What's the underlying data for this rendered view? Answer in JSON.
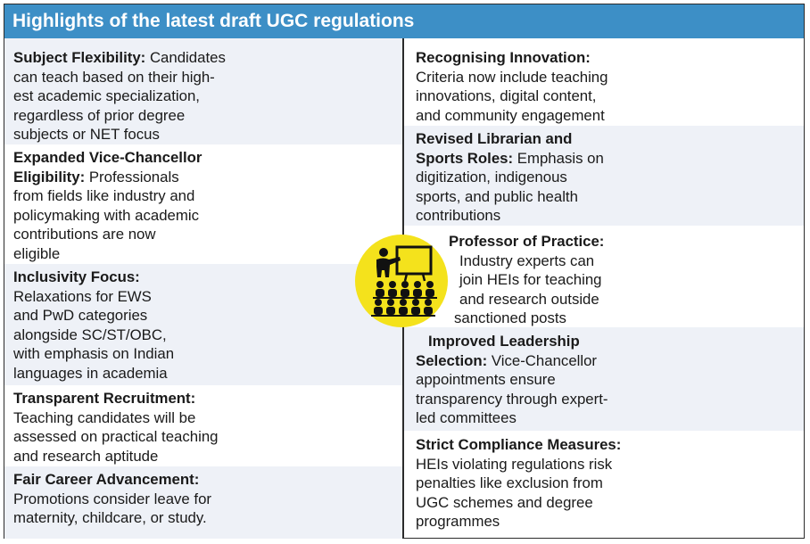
{
  "header": {
    "title": "Highlights of the latest draft UGC regulations"
  },
  "left": [
    {
      "title": "Subject Flexibility:",
      "lines": [
        "Candidates",
        "can teach based on their high-",
        "est academic specialization,",
        "regardless of prior degree",
        "subjects or NET focus"
      ]
    },
    {
      "title": "Expanded Vice-Chancellor",
      "title2": "Eligibility:",
      "lines": [
        "Professionals",
        "from fields like industry and",
        "policymaking with academic",
        "contributions are now",
        "eligible"
      ]
    },
    {
      "title": "Inclusivity Focus:",
      "lines": [
        "Relaxations for EWS",
        "and PwD categories",
        "alongside SC/ST/OBC,",
        "with emphasis on Indian",
        "languages in academia"
      ]
    },
    {
      "title": "Transparent Recruitment:",
      "lines": [
        "Teaching candidates will be",
        "assessed on practical teaching",
        "and research aptitude"
      ]
    },
    {
      "title": "Fair Career Advancement:",
      "lines": [
        "Promotions consider leave for",
        "maternity, childcare, or study."
      ]
    }
  ],
  "right": [
    {
      "title": "Recognising Innovation:",
      "lines": [
        "Criteria now include teaching",
        "innovations, digital content,",
        "and community engagement"
      ]
    },
    {
      "title": "Revised Librarian and",
      "title2": "Sports Roles:",
      "lines": [
        "Emphasis on",
        "digitization, indigenous",
        "sports, and public health",
        "contributions"
      ]
    },
    {
      "title": "Professor of Practice:",
      "lines": [
        "Industry experts can",
        "join HEIs for teaching",
        "and research outside",
        "sanctioned posts"
      ]
    },
    {
      "title": "Improved Leadership",
      "title2": "Selection:",
      "lines": [
        "Vice-Chancellor",
        "appointments ensure",
        "transparency through expert-",
        "led committees"
      ]
    },
    {
      "title": "Strict Compliance Measures:",
      "lines": [
        "HEIs violating regulations risk",
        "penalties like exclusion from",
        "UGC schemes and degree",
        "programmes"
      ]
    }
  ],
  "colors": {
    "header": "#3d8fc6",
    "shade": "#eef1f7",
    "icon": "#f4e21c"
  },
  "icon": "classroom-teacher-icon"
}
